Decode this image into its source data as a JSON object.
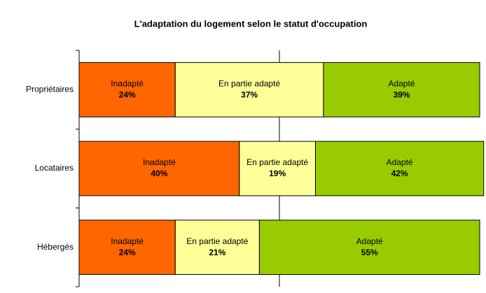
{
  "chart_data": {
    "type": "stacked-barh",
    "title": "L'adaptation du logement selon le statut d'occupation",
    "categories": [
      "Propriétaires",
      "Locataires",
      "Hébergés"
    ],
    "series": [
      {
        "name": "Inadapté",
        "color": "#ff6600",
        "values": [
          24,
          40,
          24
        ],
        "value_labels": [
          "24%",
          "40%",
          "24%"
        ]
      },
      {
        "name": "En partie adapté",
        "color": "#ffff99",
        "values": [
          37,
          19,
          21
        ],
        "value_labels": [
          "37%",
          "19%",
          "21%"
        ]
      },
      {
        "name": "Adapté",
        "color": "#99cc00",
        "values": [
          39,
          42,
          55
        ],
        "value_labels": [
          "39%",
          "42%",
          "55%"
        ]
      }
    ],
    "xlim": [
      0,
      100
    ],
    "xticks": [
      50
    ],
    "grid": true
  }
}
